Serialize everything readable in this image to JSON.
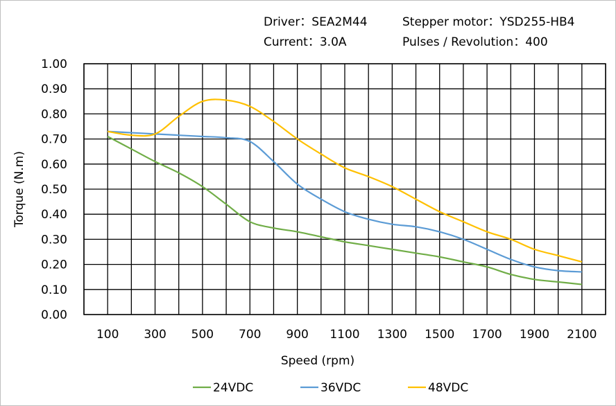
{
  "header": {
    "driver": "Driver：SEA2M44",
    "motor": "Stepper motor：YSD255-HB4",
    "current": "Current：3.0A",
    "pulses": "Pulses / Revolution：400"
  },
  "chart_data": {
    "type": "line",
    "title": "",
    "xlabel": "Speed (rpm)",
    "ylabel": "Torque (N.m)",
    "xlim": [
      0,
      2200
    ],
    "ylim": [
      0,
      1.0
    ],
    "grid": true,
    "legend": "bottom",
    "x_ticks": [
      "100",
      "300",
      "500",
      "700",
      "900",
      "1100",
      "1300",
      "1500",
      "1700",
      "1900",
      "2100"
    ],
    "y_ticks": [
      "0.00",
      "0.10",
      "0.20",
      "0.30",
      "0.40",
      "0.50",
      "0.60",
      "0.70",
      "0.80",
      "0.90",
      "1.00"
    ],
    "x": [
      100,
      200,
      300,
      400,
      500,
      600,
      700,
      800,
      900,
      1000,
      1100,
      1200,
      1300,
      1400,
      1500,
      1600,
      1700,
      1800,
      1900,
      2000,
      2100
    ],
    "series": [
      {
        "name": "24VDC",
        "color": "#70ad47",
        "values": [
          0.71,
          0.66,
          0.61,
          0.565,
          0.51,
          0.44,
          0.37,
          0.345,
          0.33,
          0.31,
          0.29,
          0.275,
          0.26,
          0.245,
          0.23,
          0.21,
          0.19,
          0.16,
          0.14,
          0.13,
          0.12
        ]
      },
      {
        "name": "36VDC",
        "color": "#5b9bd5",
        "values": [
          0.73,
          0.725,
          0.72,
          0.715,
          0.71,
          0.705,
          0.69,
          0.61,
          0.52,
          0.46,
          0.41,
          0.38,
          0.36,
          0.35,
          0.33,
          0.3,
          0.26,
          0.22,
          0.19,
          0.175,
          0.17
        ]
      },
      {
        "name": "48VDC",
        "color": "#ffc000",
        "values": [
          0.73,
          0.715,
          0.72,
          0.79,
          0.85,
          0.855,
          0.83,
          0.77,
          0.7,
          0.64,
          0.585,
          0.55,
          0.51,
          0.46,
          0.41,
          0.37,
          0.33,
          0.3,
          0.26,
          0.235,
          0.21
        ]
      }
    ]
  }
}
